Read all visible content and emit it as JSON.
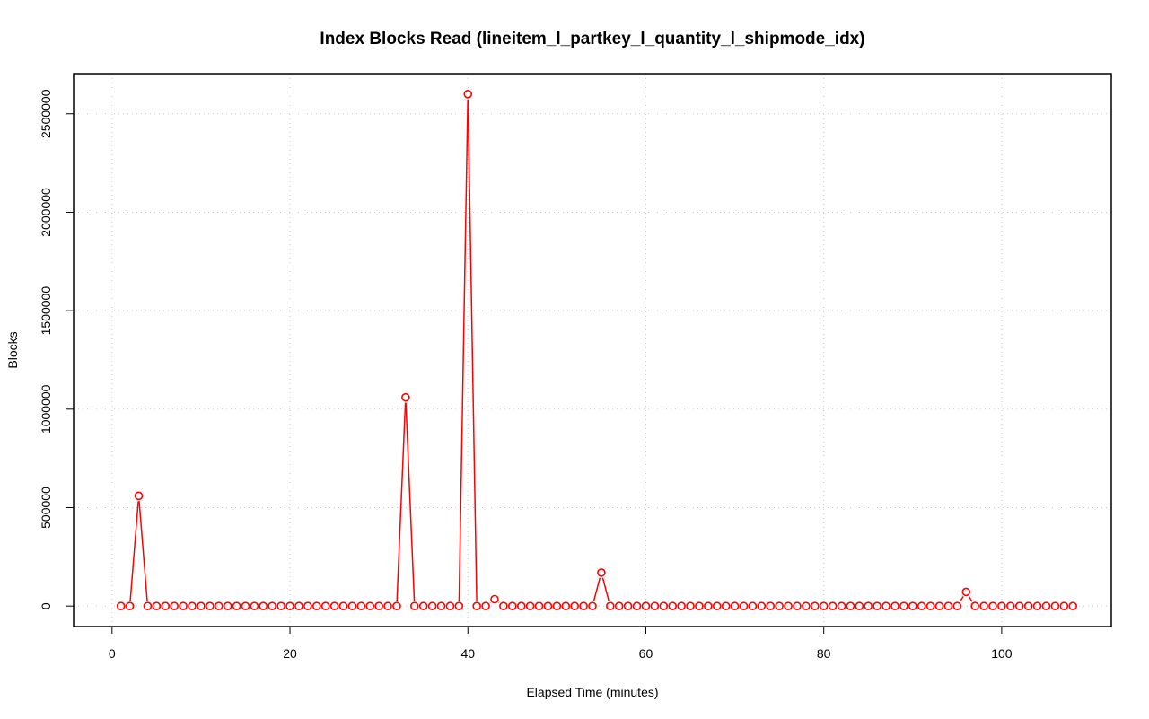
{
  "chart_data": {
    "type": "line",
    "title": "Index Blocks Read (lineitem_l_partkey_l_quantity_l_shipmode_idx)",
    "xlabel": "Elapsed Time (minutes)",
    "ylabel": "Blocks",
    "xlim": [
      -4.32,
      112.32
    ],
    "ylim": [
      -104000,
      2704000
    ],
    "xticks": [
      0,
      20,
      40,
      60,
      80,
      100
    ],
    "yticks": [
      0,
      500000,
      1000000,
      1500000,
      2000000,
      2500000
    ],
    "xtick_labels": [
      "0",
      "20",
      "40",
      "60",
      "80",
      "100"
    ],
    "ytick_labels": [
      "0",
      "500000",
      "1000000",
      "1500000",
      "2000000",
      "2500000"
    ],
    "grid": true,
    "line_style": "overplotted points and lines",
    "series": [
      {
        "color": "#ff0000",
        "x": [
          1,
          2,
          3,
          4,
          5,
          6,
          7,
          8,
          9,
          10,
          11,
          12,
          13,
          14,
          15,
          16,
          17,
          18,
          19,
          20,
          21,
          22,
          23,
          24,
          25,
          26,
          27,
          28,
          29,
          30,
          31,
          32,
          33,
          34,
          35,
          36,
          37,
          38,
          39,
          40,
          41,
          42,
          43,
          44,
          45,
          46,
          47,
          48,
          49,
          50,
          51,
          52,
          53,
          54,
          55,
          56,
          57,
          58,
          59,
          60,
          61,
          62,
          63,
          64,
          65,
          66,
          67,
          68,
          69,
          70,
          71,
          72,
          73,
          74,
          75,
          76,
          77,
          78,
          79,
          80,
          81,
          82,
          83,
          84,
          85,
          86,
          87,
          88,
          89,
          90,
          91,
          92,
          93,
          94,
          95,
          96,
          97,
          98,
          99,
          100,
          101,
          102,
          103,
          104,
          105,
          106,
          107,
          108
        ],
        "values": [
          0,
          0,
          560000,
          0,
          0,
          0,
          0,
          0,
          0,
          0,
          0,
          0,
          0,
          0,
          0,
          0,
          0,
          0,
          0,
          0,
          0,
          0,
          0,
          0,
          0,
          0,
          0,
          0,
          0,
          0,
          0,
          0,
          1060000,
          0,
          0,
          0,
          0,
          0,
          0,
          2600000,
          0,
          0,
          35000,
          0,
          0,
          0,
          0,
          0,
          0,
          0,
          0,
          0,
          0,
          0,
          170000,
          0,
          0,
          0,
          0,
          0,
          0,
          0,
          0,
          0,
          0,
          0,
          0,
          0,
          0,
          0,
          0,
          0,
          0,
          0,
          0,
          0,
          0,
          0,
          0,
          0,
          0,
          0,
          0,
          0,
          0,
          0,
          0,
          0,
          0,
          0,
          0,
          0,
          0,
          0,
          0,
          72000,
          0,
          0,
          0,
          0,
          0,
          0,
          0,
          0,
          0,
          0,
          0,
          0
        ]
      }
    ]
  }
}
